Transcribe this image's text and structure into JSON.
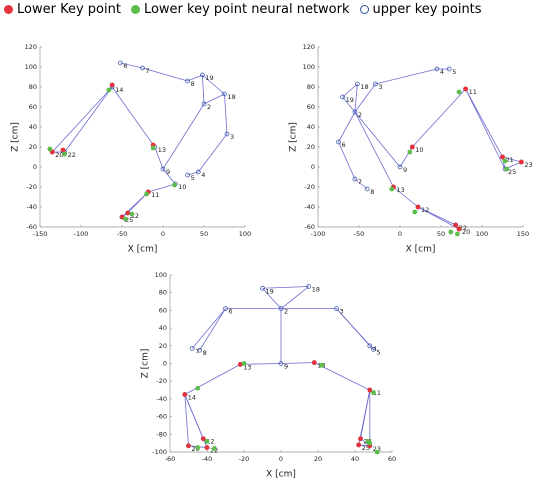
{
  "legend": [
    {
      "name": "Lower Key point",
      "color": "#e5323b"
    },
    {
      "name": "Lower key point neural network",
      "color": "#5dbd4a"
    },
    {
      "name": "upper key points",
      "color": "#2f4f9f"
    }
  ],
  "chart_data": [
    {
      "type": "scatter",
      "xlabel": "X [cm]",
      "ylabel": "Z [cm]",
      "xlim": [
        -150,
        100
      ],
      "xticks": [
        -150,
        -100,
        -50,
        0,
        50,
        100
      ],
      "ylim": [
        -60,
        120
      ],
      "yticks": [
        -60,
        -40,
        -20,
        0,
        20,
        40,
        60,
        80,
        100,
        120
      ],
      "upper": {
        "labels": [
          "6",
          "7",
          "8",
          "19",
          "2",
          "18",
          "3",
          "4",
          "5",
          "14",
          "13",
          "9",
          "10",
          "11",
          "12",
          "25",
          "20",
          "22"
        ],
        "x": [
          -52,
          -25,
          30,
          48,
          50,
          75,
          78,
          43,
          30,
          -62,
          -10,
          0,
          15,
          -18,
          -43,
          -50,
          -135,
          -120
        ],
        "values": [
          104,
          99,
          86,
          92,
          63,
          73,
          33,
          -5,
          -8,
          80,
          20,
          -2,
          -17,
          -25,
          -46,
          -50,
          15,
          15
        ]
      },
      "lower": {
        "x": [
          -62,
          -12,
          -18,
          -43,
          -50,
          -135,
          -122
        ],
        "values": [
          82,
          22,
          -25,
          -46,
          -50,
          15,
          17
        ]
      },
      "network": {
        "x": [
          -66,
          -12,
          14,
          -20,
          -38,
          -46,
          -138,
          -120
        ],
        "values": [
          77,
          19,
          -18,
          -27,
          -47,
          -52,
          18,
          13
        ]
      }
    },
    {
      "type": "scatter",
      "xlabel": "X [cm]",
      "ylabel": "Z [cm]",
      "xlim": [
        -100,
        150
      ],
      "xticks": [
        -100,
        -50,
        0,
        50,
        100,
        150
      ],
      "ylim": [
        -60,
        120
      ],
      "yticks": [
        -60,
        -40,
        -20,
        0,
        20,
        40,
        60,
        80,
        100,
        120
      ],
      "upper": {
        "labels": [
          "19",
          "18",
          "2",
          "3",
          "4",
          "5",
          "6",
          "7",
          "8",
          "9",
          "10",
          "11",
          "21",
          "23",
          "25",
          "13",
          "12",
          "20",
          "22"
        ],
        "x": [
          -70,
          -52,
          -55,
          -30,
          45,
          60,
          -75,
          -55,
          -40,
          0,
          15,
          80,
          125,
          148,
          128,
          -8,
          22,
          72,
          68
        ],
        "values": [
          70,
          83,
          55,
          83,
          98,
          98,
          25,
          -12,
          -22,
          0,
          20,
          78,
          10,
          5,
          -2,
          -20,
          -40,
          -62,
          -58
        ]
      },
      "lower": {
        "x": [
          80,
          15,
          -8,
          22,
          72,
          68,
          125,
          148
        ],
        "values": [
          78,
          20,
          -20,
          -40,
          -62,
          -58,
          10,
          5
        ]
      },
      "network": {
        "x": [
          72,
          12,
          -10,
          18,
          70,
          62,
          128,
          130
        ],
        "values": [
          75,
          15,
          -22,
          -45,
          -67,
          -65,
          6,
          -2
        ]
      }
    },
    {
      "type": "scatter",
      "xlabel": "X [cm]",
      "ylabel": "Z [cm]",
      "xlim": [
        -60,
        60
      ],
      "xticks": [
        -60,
        -40,
        -20,
        0,
        20,
        40,
        60
      ],
      "ylim": [
        -100,
        100
      ],
      "yticks": [
        -100,
        -80,
        -60,
        -40,
        -20,
        0,
        20,
        40,
        60,
        80,
        100
      ],
      "upper": {
        "labels": [
          "19",
          "18",
          "2",
          "6",
          "3",
          "7",
          "8",
          "4",
          "5",
          "13",
          "9",
          "10",
          "14",
          "20",
          "22",
          "12",
          "11",
          "25",
          "23",
          "24"
        ],
        "x": [
          -10,
          15,
          0,
          -30,
          30,
          -48,
          -44,
          48,
          50,
          -22,
          0,
          18,
          -52,
          -50,
          -40,
          -42,
          48,
          42,
          48,
          43
        ],
        "values": [
          85,
          87,
          62,
          62,
          62,
          17,
          15,
          20,
          16,
          -1,
          0,
          1,
          -35,
          -93,
          -95,
          -85,
          -30,
          -92,
          -93,
          -85
        ]
      },
      "lower": {
        "x": [
          -52,
          -22,
          18,
          48,
          -50,
          -40,
          42,
          48,
          -42,
          43
        ],
        "values": [
          -35,
          -1,
          1,
          -30,
          -93,
          -95,
          -92,
          -93,
          -85,
          -85
        ]
      },
      "network": {
        "x": [
          -45,
          -20,
          22,
          50,
          -45,
          -36,
          47,
          52,
          -40,
          48
        ],
        "values": [
          -28,
          0,
          -2,
          -33,
          -95,
          -96,
          -88,
          -100,
          -88,
          -90
        ]
      }
    }
  ]
}
